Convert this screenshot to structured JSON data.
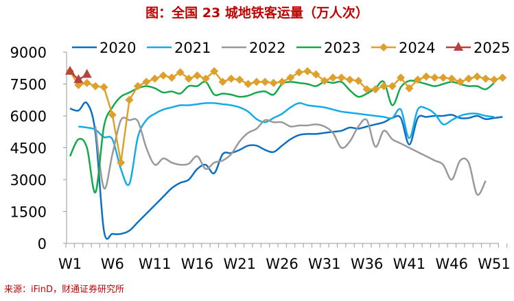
{
  "chart_data": {
    "type": "line",
    "title": "图：全国 23 城地铁客运量（万人次）",
    "source": "来源：iFinD，财通证券研究所",
    "ylim": [
      0,
      9000
    ],
    "yticks": [
      "0",
      "1500",
      "3000",
      "4500",
      "6000",
      "7500",
      "9000"
    ],
    "xtick_labels": [
      "W1",
      "W6",
      "W11",
      "W16",
      "W21",
      "W26",
      "W31",
      "W36",
      "W41",
      "W46",
      "W51"
    ],
    "legend_position": "top",
    "series": [
      {
        "name": "2020",
        "color": "#0a6fc2",
        "start": 1,
        "values": [
          6350,
          6250,
          6600,
          5200,
          600,
          450,
          450,
          600,
          1000,
          1400,
          1800,
          2200,
          2600,
          2850,
          3000,
          3500,
          3700,
          3300,
          4200,
          4250,
          4400,
          4600,
          4600,
          4400,
          4300,
          4600,
          4900,
          5100,
          5150,
          5150,
          5200,
          5250,
          5300,
          5450,
          5400,
          5500,
          5600,
          5700,
          5900,
          5900,
          4650,
          5900,
          5950,
          6000,
          6000,
          6050,
          5900,
          5900,
          6000,
          5850,
          5900,
          5950
        ]
      },
      {
        "name": "2021",
        "color": "#13aaea",
        "start": 2,
        "values": [
          5500,
          5450,
          5350,
          5000,
          4900,
          3500,
          2800,
          5000,
          5800,
          6100,
          6300,
          6400,
          6500,
          6500,
          6550,
          6600,
          6600,
          6550,
          6500,
          6400,
          6200,
          5850,
          5700,
          5900,
          6100,
          6400,
          6600,
          6500,
          6450,
          6400,
          6300,
          6200,
          6150,
          6100,
          6050,
          6000,
          5950,
          5900,
          6300,
          4950,
          6300,
          6350,
          6100,
          5600,
          5800,
          6000,
          6100,
          6100,
          6000,
          5950
        ]
      },
      {
        "name": "2022",
        "color": "#999999",
        "start": 4,
        "values": [
          5500,
          2600,
          4200,
          5800,
          5800,
          5750,
          4500,
          3700,
          4000,
          3800,
          3700,
          3750,
          4100,
          3500,
          3800,
          3900,
          4200,
          4800,
          5200,
          5400,
          5800,
          5700,
          5700,
          5500,
          5550,
          5550,
          5600,
          5500,
          5200,
          4500,
          4800,
          5500,
          5800,
          4550,
          5300,
          4900,
          4700,
          4500,
          4300,
          4100,
          3900,
          3700,
          3000,
          3900,
          3800,
          2300,
          2950
        ]
      },
      {
        "name": "2023",
        "color": "#13a94a",
        "start": 1,
        "values": [
          4100,
          4900,
          4500,
          2400,
          5500,
          6400,
          6900,
          7100,
          7300,
          7400,
          7300,
          7100,
          7150,
          7050,
          7400,
          7400,
          7600,
          7000,
          7050,
          7000,
          6900,
          6950,
          7100,
          7150,
          7000,
          7500,
          7600,
          7550,
          7500,
          7400,
          7600,
          7550,
          7600,
          7200,
          6900,
          7050,
          7300,
          7600,
          6500,
          7350,
          7650,
          7600,
          7500,
          7400,
          7500,
          7600,
          7500,
          7400,
          7400,
          7250,
          7550
        ]
      },
      {
        "name": "2024",
        "color": "#dda02a",
        "start": 1,
        "marker": "diamond",
        "values": [
          8100,
          7450,
          7550,
          7400,
          7350,
          6050,
          3800,
          6750,
          7400,
          7600,
          7750,
          7900,
          7800,
          8050,
          7750,
          7900,
          7750,
          8100,
          7600,
          7750,
          7700,
          7500,
          7600,
          7600,
          7550,
          7600,
          7800,
          8050,
          8100,
          7950,
          7650,
          7800,
          7800,
          7700,
          7650,
          7250,
          7250,
          7400,
          7400,
          7800,
          7300,
          7700,
          7850,
          7800,
          7800,
          7750,
          7600,
          7750,
          7850,
          7750,
          7700,
          7800
        ]
      },
      {
        "name": "2025",
        "color": "#b8403d",
        "start": 1,
        "marker": "triangle",
        "values": [
          8100,
          7700,
          7950
        ]
      }
    ]
  }
}
